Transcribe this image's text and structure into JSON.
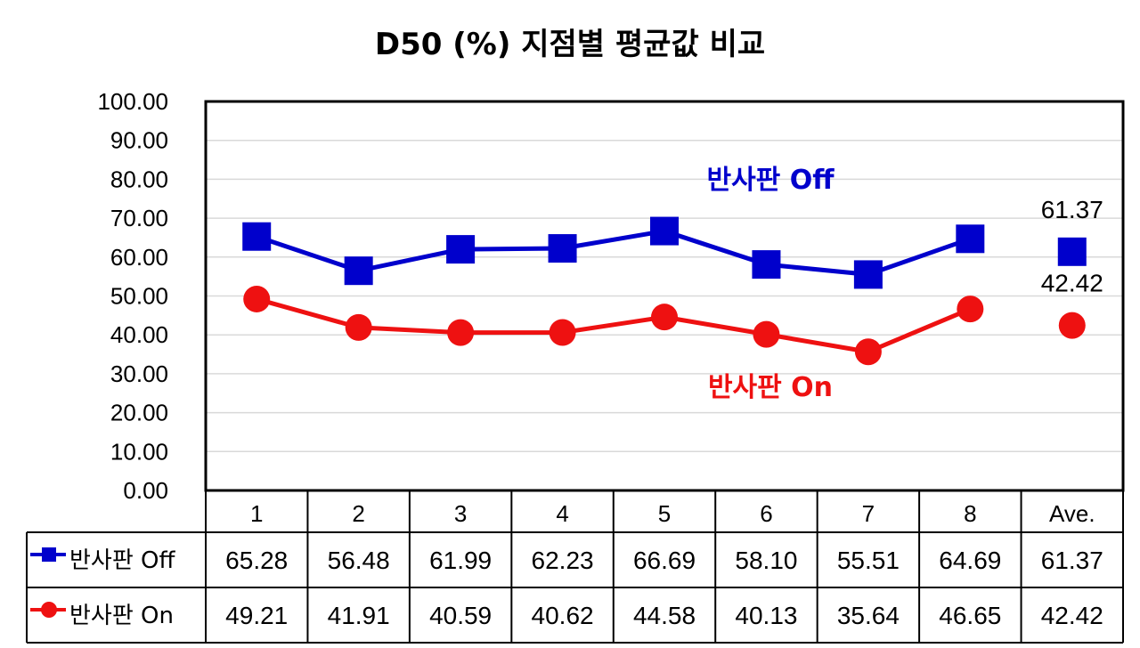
{
  "chart_data": {
    "type": "line",
    "title": "D50 (%) 지점별 평균값 비교",
    "categories": [
      "1",
      "2",
      "3",
      "4",
      "5",
      "6",
      "7",
      "8",
      "Ave."
    ],
    "ylim": [
      0,
      100
    ],
    "yticks": [
      "0.00",
      "10.00",
      "20.00",
      "30.00",
      "40.00",
      "50.00",
      "60.00",
      "70.00",
      "80.00",
      "90.00",
      "100.00"
    ],
    "grid": true,
    "series": [
      {
        "name": "반사판 Off",
        "color": "#0000CC",
        "marker": "square",
        "values": [
          65.28,
          56.48,
          61.99,
          62.23,
          66.69,
          58.1,
          55.51,
          64.69,
          61.37
        ],
        "table_values": [
          "65.28",
          "56.48",
          "61.99",
          "62.23",
          "66.69",
          "58.10",
          "55.51",
          "64.69",
          "61.37"
        ],
        "line_label": "반사판 Off",
        "ave_label": "61.37"
      },
      {
        "name": "반사판 On",
        "color": "#EE1111",
        "marker": "circle",
        "values": [
          49.21,
          41.91,
          40.59,
          40.62,
          44.58,
          40.13,
          35.64,
          46.65,
          42.42
        ],
        "table_values": [
          "49.21",
          "41.91",
          "40.59",
          "40.62",
          "44.58",
          "40.13",
          "35.64",
          "46.65",
          "42.42"
        ],
        "line_label": "반사판 On",
        "ave_label": "42.42"
      }
    ],
    "data_table": true
  }
}
